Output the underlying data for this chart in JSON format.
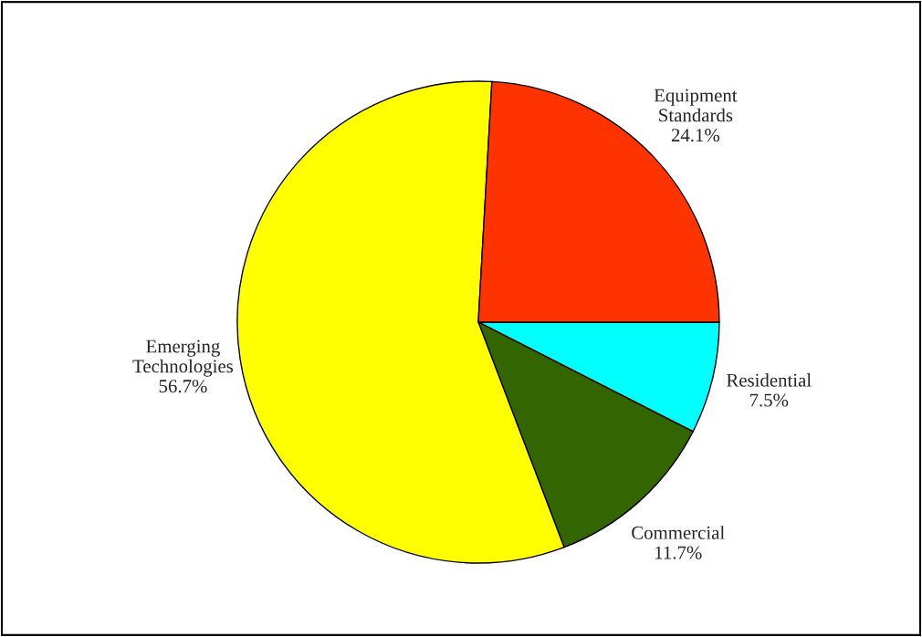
{
  "chart_data": {
    "type": "pie",
    "categories": [
      "Residential",
      "Commercial",
      "Emerging Technologies",
      "Equipment Standards"
    ],
    "values": [
      7.5,
      11.7,
      56.7,
      24.1
    ],
    "value_labels": [
      "7.5%",
      "11.7%",
      "56.7%",
      "24.1%"
    ],
    "colors": [
      "#00ffff",
      "#336600",
      "#ffff00",
      "#ff3300"
    ],
    "legend": false
  }
}
